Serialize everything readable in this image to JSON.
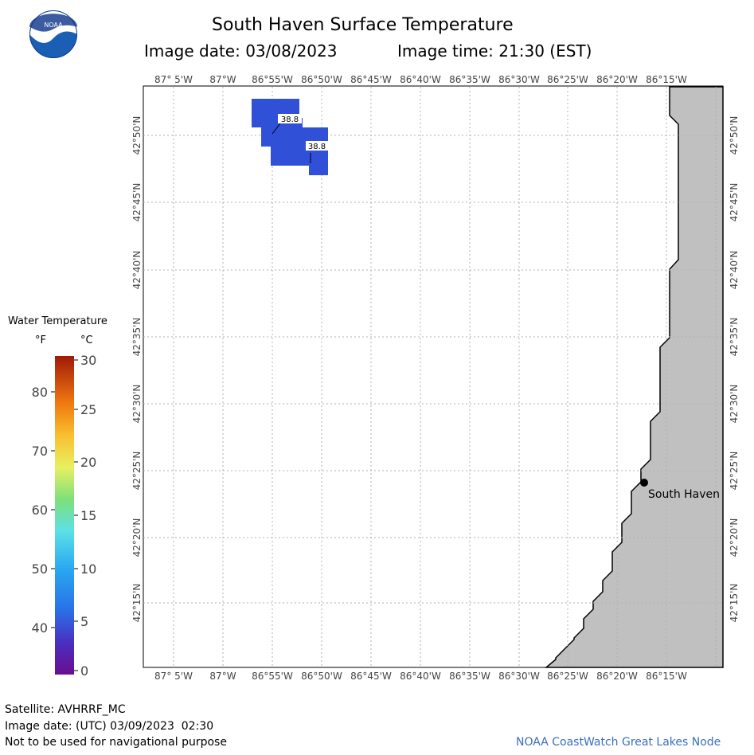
{
  "header": {
    "title": "South Haven Surface Temperature",
    "image_date_label": "Image date: 03/08/2023",
    "image_time_label": "Image time: 21:30 (EST)"
  },
  "logo": {
    "text": "NOAA",
    "icon": "noaa-logo-icon"
  },
  "map": {
    "lon_labels": [
      "87° 5'W",
      "87°W",
      "86°55'W",
      "86°50'W",
      "86°45'W",
      "86°40'W",
      "86°35'W",
      "86°30'W",
      "86°25'W",
      "86°20'W",
      "86°15'W"
    ],
    "lat_labels": [
      "42°50'N",
      "42°45'N",
      "42°40'N",
      "42°35'N",
      "42°30'N",
      "42°25'N",
      "42°20'N",
      "42°15'N"
    ],
    "city": {
      "name": "South Haven"
    },
    "temperature_labels": [
      "38.8",
      "38.8"
    ],
    "colors": {
      "land": "#c0c0c0",
      "water_pixel": "#3050d8",
      "grid": "#b0b0b0"
    }
  },
  "legend": {
    "title": "Water Temperature",
    "unit_f": "°F",
    "unit_c": "°C",
    "f_ticks": [
      "80",
      "70",
      "60",
      "50",
      "40"
    ],
    "c_ticks": [
      "30",
      "25",
      "20",
      "15",
      "10",
      "5",
      "0"
    ]
  },
  "footer": {
    "satellite": "Satellite: AVHRRF_MC",
    "utc_date": "Image date: (UTC) 03/09/2023  02:30",
    "disclaimer": "Not to be used for navigational purpose",
    "credit": "NOAA CoastWatch Great Lakes Node"
  }
}
